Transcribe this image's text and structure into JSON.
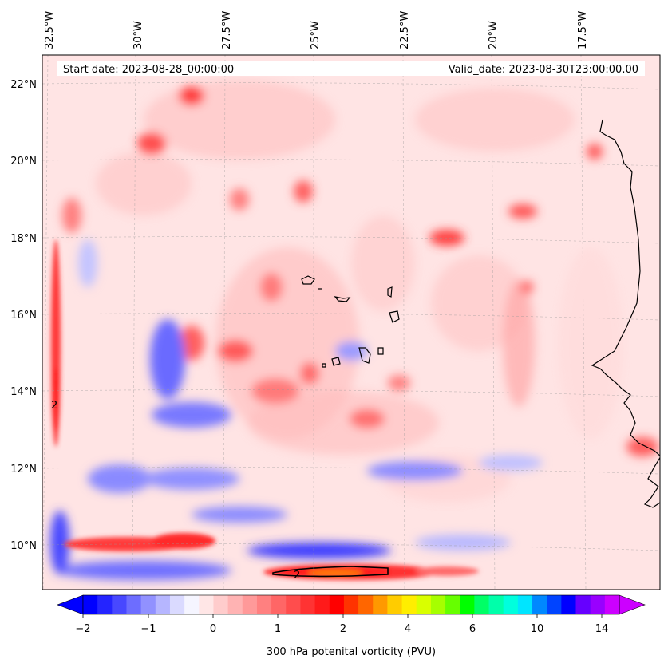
{
  "header": {
    "start_date": "Start date: 2023-08-28_00:00:00",
    "valid_date": "Valid_date: 2023-08-30T23:00:00.00"
  },
  "map": {
    "lon_labels": [
      "32.5°W",
      "30°W",
      "27.5°W",
      "25°W",
      "22.5°W",
      "20°W",
      "17.5°W"
    ],
    "lat_labels": [
      "22°N",
      "20°N",
      "18°N",
      "16°N",
      "14°N",
      "12°N",
      "10°N"
    ],
    "contour_label": "2"
  },
  "colorbar": {
    "label": "300 hPa potenital vorticity (PVU)",
    "tick_labels": [
      "−2",
      "−1",
      "0",
      "1",
      "2",
      "4",
      "6",
      "10",
      "14"
    ],
    "colors": [
      "#0000ff",
      "#2424ff",
      "#4848ff",
      "#6d6dff",
      "#9191ff",
      "#b6b6ff",
      "#dadaff",
      "#f5f5ff",
      "#ffe6e6",
      "#ffcccc",
      "#ffb3b3",
      "#ff9999",
      "#ff8080",
      "#ff6666",
      "#ff4d4d",
      "#ff3333",
      "#ff1a1a",
      "#ff0000",
      "#ff3300",
      "#ff6600",
      "#ff9900",
      "#ffcc00",
      "#ffee00",
      "#d9ff00",
      "#a6ff00",
      "#66ff00",
      "#00ff00",
      "#00ff66",
      "#00ffaa",
      "#00ffdd",
      "#00e5ff",
      "#0088ff",
      "#0044ff",
      "#0000ff",
      "#6600ff",
      "#9900ff",
      "#cc00ff"
    ]
  }
}
